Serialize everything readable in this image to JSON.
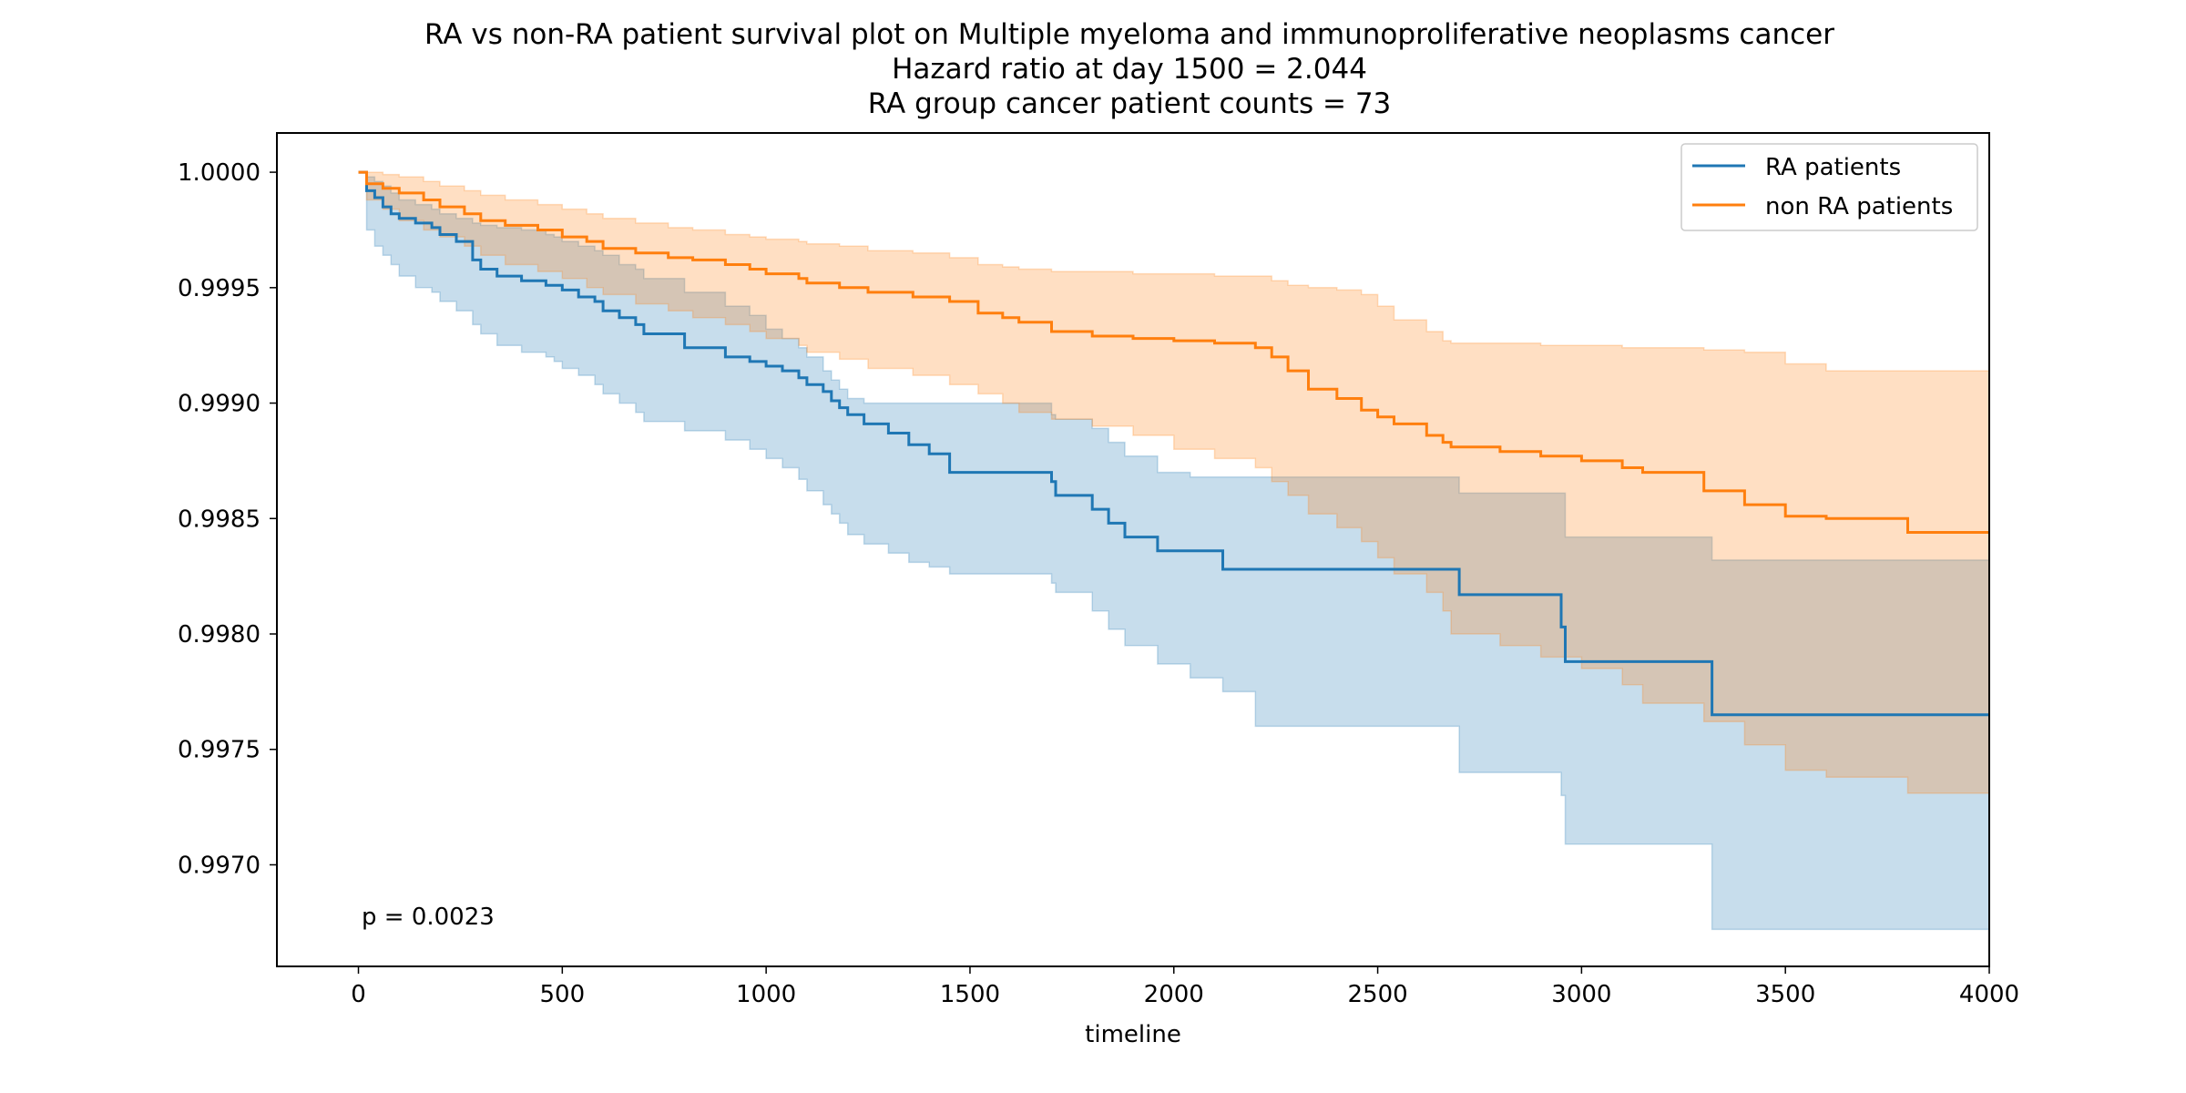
{
  "chart_data": {
    "type": "line",
    "step": true,
    "title": [
      "RA vs non-RA patient survival plot on Multiple myeloma and immunoproliferative neoplasms cancer",
      "Hazard ratio at day 1500 = 2.044",
      "RA group cancer patient counts = 73"
    ],
    "xlabel": "timeline",
    "ylabel": "",
    "xlim": [
      -200,
      4000
    ],
    "ylim": [
      0.99656,
      1.00017
    ],
    "xticks": [
      0,
      500,
      1000,
      1500,
      2000,
      2500,
      3000,
      3500,
      4000
    ],
    "yticks": [
      1.0,
      0.9995,
      0.999,
      0.9985,
      0.998,
      0.9975,
      0.997
    ],
    "ytick_labels": [
      "1.0000",
      "0.9995",
      "0.9990",
      "0.9985",
      "0.9980",
      "0.9975",
      "0.9970"
    ],
    "annotation": "p = 0.0023",
    "legend": {
      "position": "top-right",
      "entries": [
        "RA patients",
        "non RA patients"
      ]
    },
    "grid": false,
    "series": [
      {
        "name": "RA patients",
        "color": "#1f77b4",
        "x": [
          0,
          20,
          40,
          60,
          80,
          100,
          140,
          180,
          200,
          240,
          280,
          300,
          340,
          400,
          460,
          480,
          500,
          540,
          580,
          600,
          640,
          680,
          700,
          800,
          900,
          960,
          1000,
          1040,
          1080,
          1100,
          1140,
          1160,
          1180,
          1200,
          1240,
          1300,
          1350,
          1400,
          1450,
          1700,
          1710,
          1800,
          1840,
          1880,
          1960,
          2040,
          2120,
          2200,
          2700,
          2950,
          2960,
          3320,
          4000
        ],
        "y": [
          1.0,
          0.99992,
          0.99989,
          0.99985,
          0.99982,
          0.9998,
          0.99978,
          0.99976,
          0.99973,
          0.9997,
          0.99962,
          0.99958,
          0.99955,
          0.99953,
          0.99951,
          0.99951,
          0.99949,
          0.99946,
          0.99944,
          0.9994,
          0.99937,
          0.99934,
          0.9993,
          0.99924,
          0.9992,
          0.99918,
          0.99916,
          0.99914,
          0.99911,
          0.99908,
          0.99905,
          0.99901,
          0.99898,
          0.99895,
          0.99891,
          0.99887,
          0.99882,
          0.99878,
          0.9987,
          0.99866,
          0.9986,
          0.99854,
          0.99848,
          0.99842,
          0.99836,
          0.99836,
          0.99828,
          0.99828,
          0.99817,
          0.99803,
          0.99788,
          0.99765,
          0.99765
        ],
        "ci_lower": [
          1.0,
          0.99975,
          0.99968,
          0.99964,
          0.9996,
          0.99955,
          0.9995,
          0.99948,
          0.99944,
          0.9994,
          0.99934,
          0.9993,
          0.99925,
          0.99922,
          0.9992,
          0.99918,
          0.99915,
          0.99912,
          0.99908,
          0.99904,
          0.999,
          0.99896,
          0.99892,
          0.99888,
          0.99884,
          0.9988,
          0.99876,
          0.99872,
          0.99867,
          0.99862,
          0.99856,
          0.99852,
          0.99848,
          0.99843,
          0.99839,
          0.99835,
          0.99831,
          0.99829,
          0.99826,
          0.99822,
          0.99818,
          0.9981,
          0.99802,
          0.99795,
          0.99787,
          0.99781,
          0.99775,
          0.9976,
          0.9974,
          0.9973,
          0.99709,
          0.99672,
          0.99672
        ],
        "ci_upper": [
          1.0,
          0.99998,
          0.99996,
          0.99994,
          0.99991,
          0.99988,
          0.99986,
          0.99984,
          0.99982,
          0.9998,
          0.99978,
          0.99977,
          0.99976,
          0.99975,
          0.99973,
          0.99972,
          0.9997,
          0.99968,
          0.99966,
          0.99964,
          0.9996,
          0.99958,
          0.99954,
          0.99948,
          0.99942,
          0.99938,
          0.99932,
          0.99928,
          0.99924,
          0.9992,
          0.99914,
          0.9991,
          0.99906,
          0.99902,
          0.999,
          0.999,
          0.999,
          0.999,
          0.999,
          0.99895,
          0.99893,
          0.99889,
          0.99883,
          0.99877,
          0.9987,
          0.99868,
          0.99868,
          0.99868,
          0.99861,
          0.99861,
          0.99842,
          0.99832,
          0.99832
        ]
      },
      {
        "name": "non RA patients",
        "color": "#ff7f0e",
        "x": [
          0,
          20,
          60,
          100,
          160,
          200,
          260,
          300,
          360,
          440,
          500,
          560,
          600,
          680,
          760,
          820,
          900,
          960,
          1000,
          1080,
          1100,
          1180,
          1250,
          1360,
          1450,
          1520,
          1580,
          1620,
          1700,
          1800,
          1900,
          2000,
          2100,
          2200,
          2240,
          2280,
          2330,
          2400,
          2460,
          2500,
          2540,
          2620,
          2660,
          2680,
          2800,
          2900,
          3000,
          3100,
          3150,
          3300,
          3400,
          3500,
          3600,
          3700,
          3800,
          4000
        ],
        "y": [
          1.0,
          0.99995,
          0.99993,
          0.99991,
          0.99988,
          0.99985,
          0.99982,
          0.99979,
          0.99977,
          0.99975,
          0.99972,
          0.9997,
          0.99967,
          0.99965,
          0.99963,
          0.99962,
          0.9996,
          0.99958,
          0.99956,
          0.99954,
          0.99952,
          0.9995,
          0.99948,
          0.99946,
          0.99944,
          0.99939,
          0.99937,
          0.99935,
          0.99931,
          0.99929,
          0.99928,
          0.99927,
          0.99926,
          0.99924,
          0.9992,
          0.99914,
          0.99906,
          0.99902,
          0.99897,
          0.99894,
          0.99891,
          0.99886,
          0.99883,
          0.99881,
          0.99879,
          0.99877,
          0.99875,
          0.99872,
          0.9987,
          0.99862,
          0.99856,
          0.99851,
          0.9985,
          0.9985,
          0.99844,
          0.99844
        ],
        "ci_lower": [
          1.0,
          0.99988,
          0.99984,
          0.99979,
          0.99975,
          0.99972,
          0.99968,
          0.99964,
          0.9996,
          0.99957,
          0.99954,
          0.9995,
          0.99947,
          0.99943,
          0.9994,
          0.99937,
          0.99934,
          0.99931,
          0.99928,
          0.99925,
          0.99922,
          0.99919,
          0.99915,
          0.99912,
          0.99908,
          0.99904,
          0.999,
          0.99896,
          0.99893,
          0.9989,
          0.99886,
          0.9988,
          0.99876,
          0.99872,
          0.99866,
          0.9986,
          0.99852,
          0.99846,
          0.9984,
          0.99833,
          0.99826,
          0.99818,
          0.9981,
          0.998,
          0.99795,
          0.9979,
          0.99785,
          0.99778,
          0.9977,
          0.99762,
          0.99752,
          0.99741,
          0.99738,
          0.99738,
          0.99731,
          0.99716
        ],
        "ci_upper": [
          1.0,
          1.0,
          0.99999,
          0.99998,
          0.99996,
          0.99994,
          0.99992,
          0.9999,
          0.99988,
          0.99986,
          0.99984,
          0.99982,
          0.9998,
          0.99978,
          0.99976,
          0.99975,
          0.99973,
          0.99972,
          0.99971,
          0.9997,
          0.99969,
          0.99968,
          0.99966,
          0.99965,
          0.99963,
          0.9996,
          0.99959,
          0.99958,
          0.99957,
          0.99957,
          0.99956,
          0.99956,
          0.99955,
          0.99955,
          0.99953,
          0.99951,
          0.9995,
          0.99949,
          0.99947,
          0.99942,
          0.99936,
          0.99931,
          0.99927,
          0.99926,
          0.99926,
          0.99925,
          0.99925,
          0.99924,
          0.99924,
          0.99923,
          0.99922,
          0.99917,
          0.99914,
          0.99914,
          0.99914,
          0.99914
        ]
      }
    ]
  }
}
